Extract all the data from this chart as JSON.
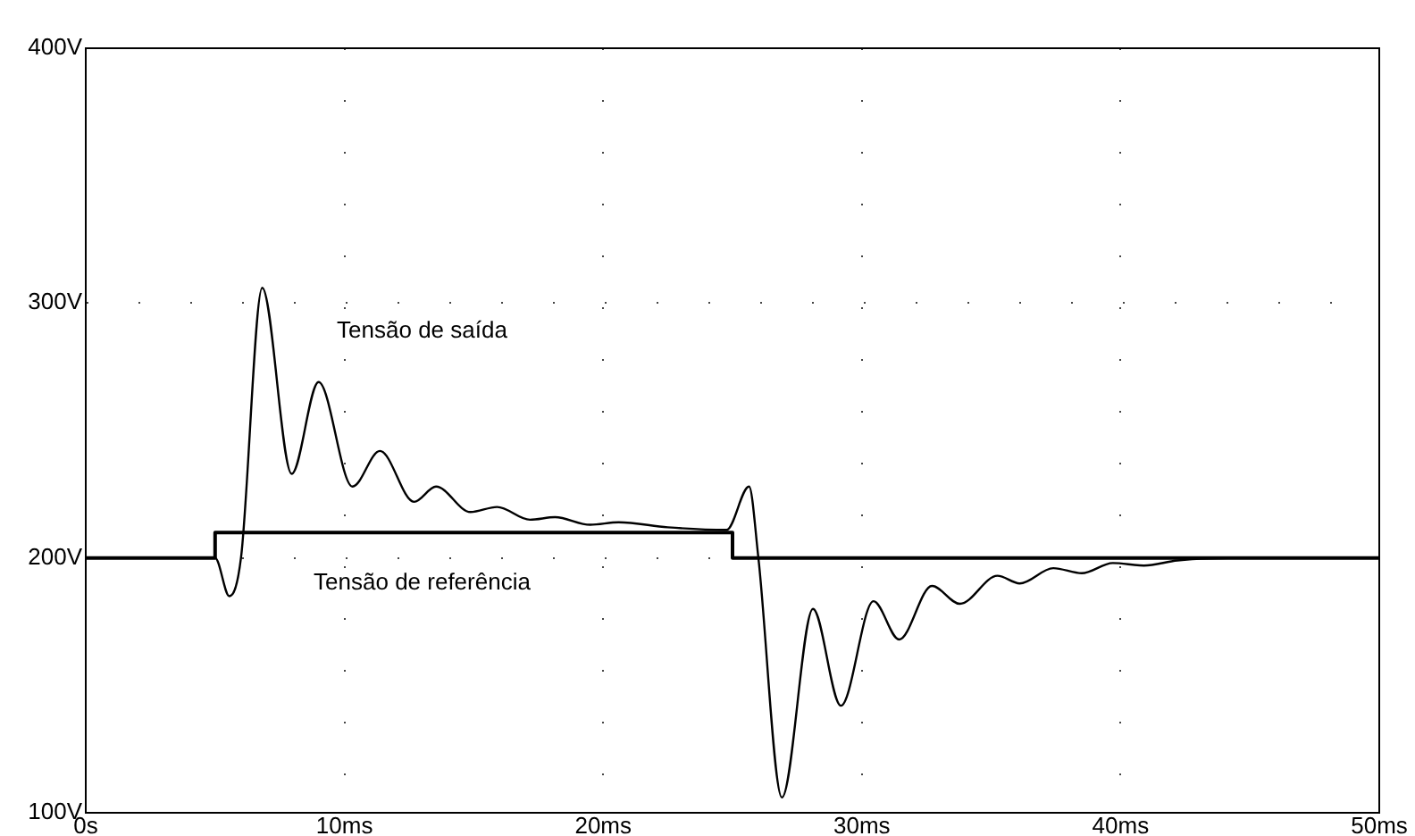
{
  "chart_data": {
    "type": "line",
    "xlim": [
      0,
      50
    ],
    "ylim": [
      100,
      400
    ],
    "xticks": [
      {
        "value": 0,
        "label": "0s"
      },
      {
        "value": 10,
        "label": "10ms"
      },
      {
        "value": 20,
        "label": "20ms"
      },
      {
        "value": 30,
        "label": "30ms"
      },
      {
        "value": 40,
        "label": "40ms"
      },
      {
        "value": 50,
        "label": "50ms"
      }
    ],
    "yticks": [
      {
        "value": 100,
        "label": "100V"
      },
      {
        "value": 200,
        "label": "200V"
      },
      {
        "value": 300,
        "label": "300V"
      },
      {
        "value": 400,
        "label": "400V"
      }
    ],
    "grid": true,
    "legend": false,
    "marker": "none",
    "line_style": "solid",
    "series": [
      {
        "name": "Tensão de saída",
        "color": "#000000",
        "x": [
          0,
          5,
          5.55,
          6,
          6.82,
          7.96,
          9.0,
          10.31,
          11.37,
          12.69,
          13.54,
          14.87,
          15.9,
          17.17,
          18.14,
          19.5,
          20.6,
          22.5,
          24.77,
          25.64,
          26.0,
          26.91,
          28.11,
          29.19,
          30.45,
          31.44,
          32.71,
          33.79,
          35.24,
          36.1,
          37.4,
          38.5,
          39.7,
          40.9,
          42.2,
          45,
          50
        ],
        "values": [
          200,
          200,
          185,
          200,
          306,
          233,
          269,
          228,
          242,
          222,
          228,
          218,
          220,
          215,
          216,
          213,
          214,
          212,
          211,
          228,
          200,
          106,
          180,
          142,
          183,
          168,
          189,
          182,
          193,
          190,
          196,
          194,
          198,
          197,
          199,
          200,
          200
        ]
      },
      {
        "name": "Tensão de referência",
        "color": "#000000",
        "x": [
          0,
          5,
          5,
          25,
          25,
          50
        ],
        "values": [
          200,
          200,
          210,
          210,
          200,
          200
        ]
      }
    ]
  }
}
